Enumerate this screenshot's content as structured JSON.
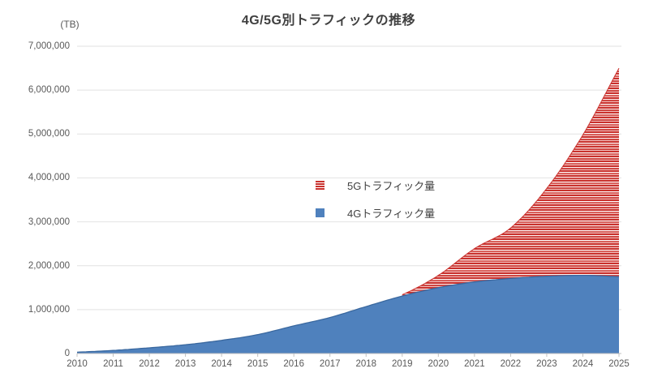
{
  "title": "4G/5G別トラフィックの推移",
  "unit_label": "(TB)",
  "legend": {
    "items": [
      {
        "label": "5Gトラフィック量",
        "swatch": "red-horizontal-stripes"
      },
      {
        "label": "4Gトラフィック量",
        "swatch": "solid-blue"
      }
    ]
  },
  "colors": {
    "blue": "#4f81bd",
    "blue_edge": "#3a689f",
    "red_dark": "#c9312d",
    "red_mid": "#cf4743",
    "red_soft": "#d8605c",
    "red_pale": "#f0bdbb",
    "red_faint": "#fdf3f3",
    "white": "#ffffff",
    "grid": "#e2e2e2",
    "axis": "#c0c0c0",
    "text": "#595959",
    "title_text": "#3f3f3f"
  },
  "chart_data": {
    "type": "area",
    "stacked": true,
    "smooth": true,
    "title": "4G/5G別トラフィックの推移",
    "ylabel": "(TB)",
    "xlabel": "",
    "grid": "horizontal",
    "legend_position": "center",
    "x": [
      2010,
      2011,
      2012,
      2013,
      2014,
      2015,
      2016,
      2017,
      2018,
      2019,
      2020,
      2021,
      2022,
      2023,
      2024,
      2025
    ],
    "ylim": [
      0,
      7000000
    ],
    "ytick_step": 1000000,
    "ytick_labels": [
      "0",
      "1,000,000",
      "2,000,000",
      "3,000,000",
      "4,000,000",
      "5,000,000",
      "6,000,000",
      "7,000,000"
    ],
    "series": [
      {
        "name": "4Gトラフィック量",
        "style": "solid",
        "color": "#4f81bd",
        "values": [
          30000,
          70000,
          130000,
          200000,
          300000,
          430000,
          630000,
          820000,
          1070000,
          1310000,
          1500000,
          1630000,
          1710000,
          1760000,
          1780000,
          1750000
        ]
      },
      {
        "name": "5Gトラフィック量",
        "style": "horizontal-stripes",
        "color": "#c9312d",
        "values": [
          0,
          0,
          0,
          0,
          0,
          0,
          0,
          0,
          0,
          30000,
          280000,
          760000,
          1150000,
          2000000,
          3200000,
          4750000
        ]
      }
    ]
  }
}
